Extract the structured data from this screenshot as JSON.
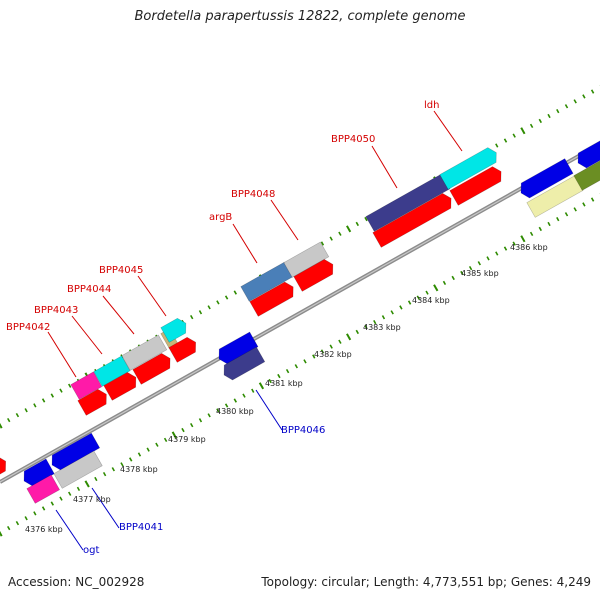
{
  "title": "Bordetella parapertussis 12822, complete genome",
  "accession": "Accession: NC_002928",
  "summary": "Topology: circular; Length: 4,773,551 bp; Genes: 4,249",
  "colors": {
    "background": "#ffffff",
    "backbone": "#8c8c8c",
    "tick_marks": "#2e8b00",
    "label_forward": "#d40000",
    "label_reverse": "#0000c8",
    "cds_red": "#ff0000",
    "blue": "#0000e6",
    "navy": "#3c3c8c",
    "cyan": "#00e6e6",
    "magenta": "#ff1aa8",
    "grey": "#c8c8c8",
    "steel_blue": "#4a7fb8",
    "khaki": "#c8b478",
    "pale_yellow": "#eeeeaa",
    "olive": "#6b8e23"
  },
  "scale_labels": [
    "4376 kbp",
    "4377 kbp",
    "4378 kbp",
    "4379 kbp",
    "4380 kbp",
    "4381 kbp",
    "4382 kbp",
    "4383 kbp",
    "4384 kbp",
    "4385 kbp",
    "4386 kbp"
  ],
  "feature_labels": [
    {
      "text": "BPP4042",
      "strand": "forward"
    },
    {
      "text": "BPP4043",
      "strand": "forward"
    },
    {
      "text": "BPP4044",
      "strand": "forward"
    },
    {
      "text": "BPP4045",
      "strand": "forward"
    },
    {
      "text": "argB",
      "strand": "forward"
    },
    {
      "text": "BPP4048",
      "strand": "forward"
    },
    {
      "text": "BPP4050",
      "strand": "forward"
    },
    {
      "text": "ldh",
      "strand": "forward"
    },
    {
      "text": "BPP4046",
      "strand": "reverse"
    },
    {
      "text": "BPP4041",
      "strand": "reverse"
    },
    {
      "text": "ogt",
      "strand": "reverse"
    }
  ]
}
